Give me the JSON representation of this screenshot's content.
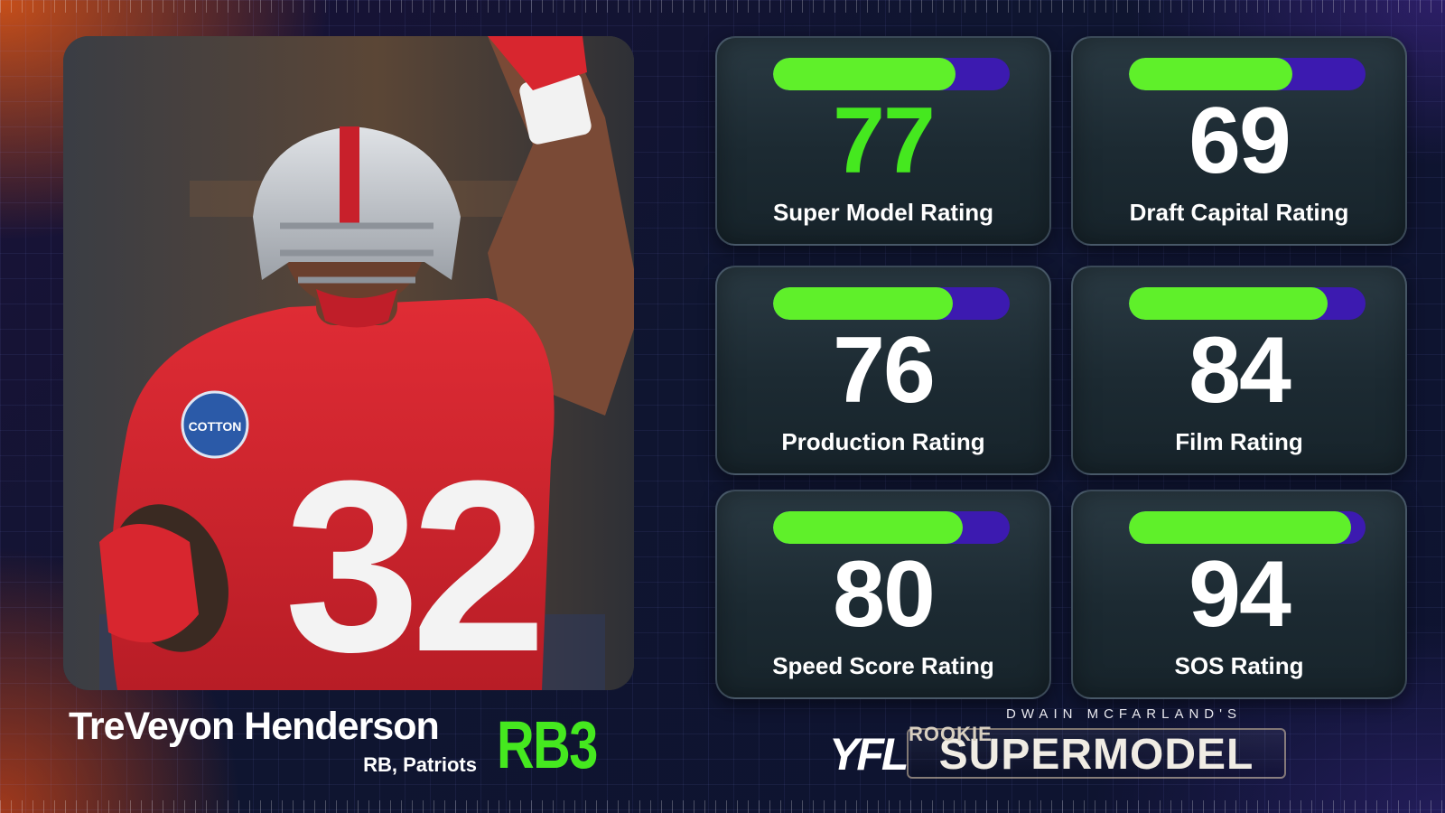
{
  "player": {
    "name": "TreVeyon Henderson",
    "position_team": "RB, Patriots",
    "rank": "RB3",
    "jersey_number": "32",
    "photo_icon": "football-player-photo"
  },
  "ratings": [
    {
      "label": "Super Model Rating",
      "value": "77",
      "percent": 77,
      "accent": true
    },
    {
      "label": "Draft Capital Rating",
      "value": "69",
      "percent": 69,
      "accent": false
    },
    {
      "label": "Production Rating",
      "value": "76",
      "percent": 76,
      "accent": false
    },
    {
      "label": "Film Rating",
      "value": "84",
      "percent": 84,
      "accent": false
    },
    {
      "label": "Speed Score Rating",
      "value": "80",
      "percent": 80,
      "accent": false
    },
    {
      "label": "SOS Rating",
      "value": "94",
      "percent": 94,
      "accent": false
    }
  ],
  "brand": {
    "logo": "YFL",
    "byline": "DWAIN MCFARLAND'S",
    "rookie": "ROOKIE",
    "title": "SUPERMODEL"
  },
  "colors": {
    "accent_green": "#45e81f",
    "bar_fill": "#5ff02a",
    "bar_track": "#3c1ab0",
    "card_bg": "#1c2a32",
    "jersey_red": "#d8262f"
  }
}
